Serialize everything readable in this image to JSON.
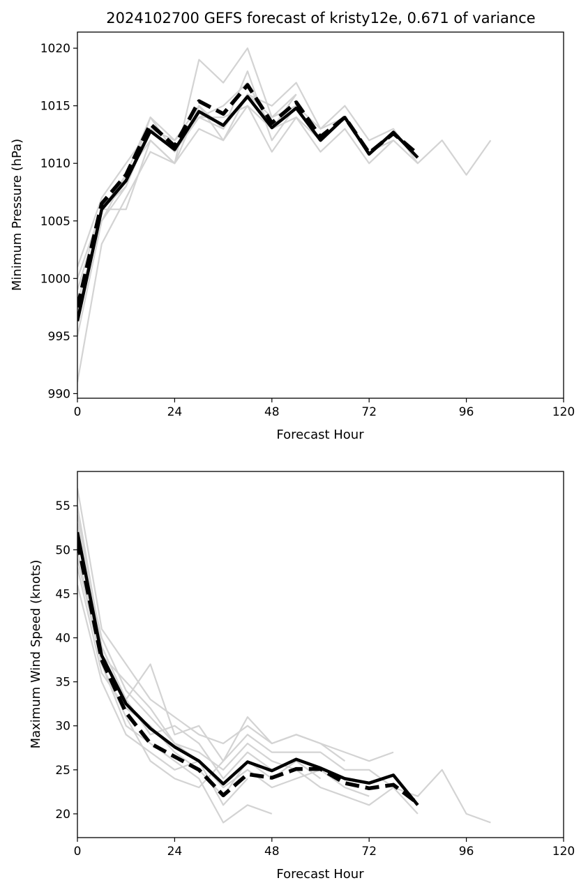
{
  "chart_data": [
    {
      "type": "line",
      "title": "2024102700 GEFS forecast of kristy12e, 0.671 of variance",
      "xlabel": "Forecast Hour",
      "ylabel": "Minimum Pressure (hPa)",
      "xlim": [
        0,
        120
      ],
      "ylim": [
        989.6,
        1021.4
      ],
      "xticks": [
        0,
        24,
        48,
        72,
        96,
        120
      ],
      "yticks": [
        990,
        995,
        1000,
        1005,
        1010,
        1015,
        1020
      ],
      "colors": {
        "members": "#d3d3d3",
        "main": "#000000"
      },
      "series": [
        {
          "style": "member",
          "x": [
            0,
            6,
            12,
            18,
            24,
            30,
            36,
            42,
            48,
            54
          ],
          "y": [
            991,
            1003,
            1007,
            1011,
            1010,
            1019,
            1017,
            1020,
            1014,
            1016
          ]
        },
        {
          "style": "member",
          "x": [
            0,
            6,
            12,
            18,
            24,
            30,
            36,
            42,
            48,
            54,
            60,
            66,
            72,
            78,
            84,
            90,
            96,
            102
          ],
          "y": [
            995,
            1005,
            1008,
            1013,
            1012,
            1015,
            1013,
            1016,
            1015,
            1017,
            1013,
            1015,
            1012,
            1013,
            1010,
            1012,
            1009,
            1012
          ]
        },
        {
          "style": "member",
          "x": [
            0,
            6,
            12,
            18,
            24,
            30,
            36,
            42,
            48,
            54,
            60,
            66,
            72,
            78,
            84
          ],
          "y": [
            997,
            1006,
            1009,
            1014,
            1011,
            1014,
            1013,
            1018,
            1012,
            1015,
            1012,
            1014,
            1011,
            1012,
            1010
          ]
        },
        {
          "style": "member",
          "x": [
            0,
            6,
            12,
            18,
            24,
            30,
            36,
            42,
            48,
            54,
            60,
            66,
            72,
            78
          ],
          "y": [
            999,
            1006,
            1006,
            1012,
            1010,
            1013,
            1012,
            1015,
            1011,
            1014,
            1011,
            1013,
            1010,
            1012
          ]
        },
        {
          "style": "member",
          "x": [
            0,
            6,
            12,
            18,
            24,
            30,
            36,
            42,
            48,
            54,
            60
          ],
          "y": [
            1001,
            1007,
            1010,
            1013,
            1011,
            1014,
            1015,
            1017,
            1013,
            1014,
            1012
          ]
        },
        {
          "style": "member",
          "x": [
            0,
            6,
            12,
            18,
            24,
            30,
            36,
            42,
            48,
            54,
            60,
            66
          ],
          "y": [
            998,
            1005,
            1009,
            1012,
            1010,
            1015,
            1012,
            1016,
            1014,
            1015,
            1013,
            1014
          ]
        },
        {
          "style": "member",
          "x": [
            0,
            6,
            12,
            18,
            24,
            30,
            36,
            42,
            48,
            54
          ],
          "y": [
            1000,
            1006,
            1008,
            1014,
            1012,
            1014,
            1014,
            1015,
            1013,
            1016
          ]
        },
        {
          "style": "dashed",
          "x": [
            0,
            6,
            12,
            18,
            24,
            30,
            36,
            42,
            48,
            54,
            60,
            66,
            72,
            78,
            84
          ],
          "y": [
            997.5,
            1006.5,
            1009,
            1013.4,
            1011.5,
            1015.4,
            1014.3,
            1016.8,
            1013.5,
            1015.3,
            1012.3,
            1014,
            1010.9,
            1012.6,
            1010.8
          ]
        },
        {
          "style": "solid",
          "x": [
            0,
            6,
            12,
            18,
            24,
            30,
            36,
            42,
            48,
            54,
            60,
            66,
            72,
            78,
            84
          ],
          "y": [
            996.3,
            1006,
            1008.5,
            1012.8,
            1011.2,
            1014.5,
            1013.3,
            1015.8,
            1013.1,
            1014.8,
            1012,
            1014,
            1010.8,
            1012.7,
            1010.5
          ]
        }
      ]
    },
    {
      "type": "line",
      "title": "",
      "xlabel": "Forecast Hour",
      "ylabel": "Maximum Wind Speed (knots)",
      "xlim": [
        0,
        120
      ],
      "ylim": [
        17.3,
        58.9
      ],
      "xticks": [
        0,
        24,
        48,
        72,
        96,
        120
      ],
      "yticks": [
        20,
        25,
        30,
        35,
        40,
        45,
        50,
        55
      ],
      "colors": {
        "members": "#d3d3d3",
        "main": "#000000"
      },
      "series": [
        {
          "style": "member",
          "x": [
            0,
            6,
            12,
            18,
            24,
            30,
            36,
            42,
            48,
            54,
            60,
            66,
            72,
            78
          ],
          "y": [
            57,
            41,
            37,
            33,
            31,
            29,
            28,
            30,
            28,
            29,
            28,
            27,
            26,
            27
          ]
        },
        {
          "style": "member",
          "x": [
            0,
            6,
            12,
            18,
            24,
            30,
            36,
            42,
            48,
            54,
            60,
            66,
            72,
            78,
            84,
            90,
            96,
            102
          ],
          "y": [
            55,
            39,
            33,
            37,
            29,
            30,
            26,
            29,
            27,
            27,
            27,
            25,
            25,
            23,
            22,
            25,
            20,
            19
          ]
        },
        {
          "style": "member",
          "x": [
            0,
            6,
            12,
            18,
            24,
            30,
            36,
            42,
            48,
            54,
            60,
            66,
            72,
            78,
            84
          ],
          "y": [
            53,
            38,
            35,
            32,
            28,
            27,
            25,
            28,
            26,
            25,
            23,
            22,
            21,
            23,
            20
          ]
        },
        {
          "style": "member",
          "x": [
            0,
            6,
            12,
            18,
            24,
            30,
            36,
            42,
            48
          ],
          "y": [
            50,
            37,
            30,
            28,
            26,
            24,
            19,
            21,
            20
          ]
        },
        {
          "style": "member",
          "x": [
            0,
            6,
            12,
            18,
            24,
            30,
            36,
            42,
            48,
            54,
            60
          ],
          "y": [
            48,
            36,
            32,
            30,
            27,
            25,
            22,
            26,
            24,
            26,
            24
          ]
        },
        {
          "style": "member",
          "x": [
            0,
            6,
            12,
            18,
            24,
            30,
            36,
            42,
            48,
            54,
            60,
            66,
            72
          ],
          "y": [
            46,
            35,
            29,
            27,
            25,
            26,
            23,
            25,
            23,
            24,
            25,
            23,
            22
          ]
        },
        {
          "style": "member",
          "x": [
            0,
            6,
            12,
            18,
            24,
            30,
            36,
            42
          ],
          "y": [
            52,
            40,
            34,
            31,
            28,
            26,
            21,
            24
          ]
        },
        {
          "style": "member",
          "x": [
            0,
            6,
            12,
            18,
            24,
            30,
            36,
            42,
            48
          ],
          "y": [
            54,
            39,
            33,
            29,
            30,
            28,
            24,
            27,
            25
          ]
        },
        {
          "style": "member",
          "x": [
            0,
            6,
            12,
            18,
            24,
            30,
            36,
            42,
            48,
            54,
            60,
            66
          ],
          "y": [
            49,
            37,
            31,
            26,
            24,
            23,
            26,
            31,
            28,
            29,
            28,
            26
          ]
        },
        {
          "style": "dashed",
          "x": [
            0,
            6,
            12,
            18,
            24,
            30,
            36,
            42,
            48,
            54,
            60,
            66,
            72,
            78,
            84
          ],
          "y": [
            51,
            37.5,
            31.5,
            28,
            26.5,
            25,
            22.1,
            24.5,
            24.1,
            25.1,
            25.1,
            23.5,
            22.9,
            23.3,
            21.2
          ]
        },
        {
          "style": "solid",
          "x": [
            0,
            6,
            12,
            18,
            24,
            30,
            36,
            42,
            48,
            54,
            60,
            66,
            72,
            78,
            84
          ],
          "y": [
            52,
            38,
            32.5,
            29.7,
            27.6,
            26,
            23.4,
            25.9,
            24.9,
            26.2,
            25.2,
            24,
            23.5,
            24.4,
            21
          ]
        }
      ]
    }
  ]
}
